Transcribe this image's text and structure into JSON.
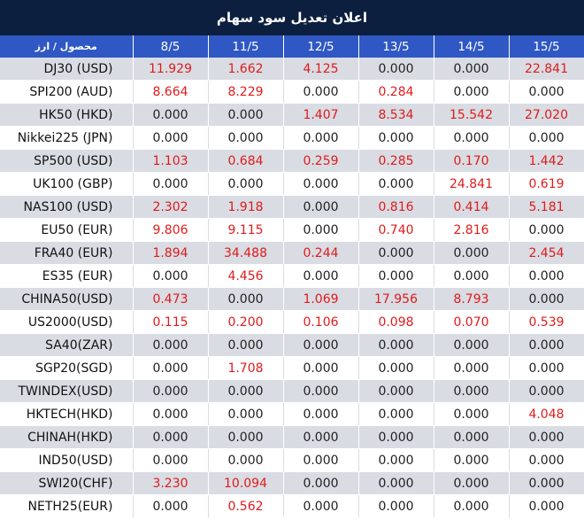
{
  "title": "اعلان تعدیل سود سهام",
  "columns": [
    "محصول / ارز",
    "8/5",
    "11/5",
    "12/5",
    "13/5",
    "14/5",
    "15/5"
  ],
  "rows": [
    {
      "instrument": "DJ30 (USD)",
      "values": [
        "11.929",
        "1.662",
        "4.125",
        "0.000",
        "0.000",
        "22.841"
      ]
    },
    {
      "instrument": "SPI200 (AUD)",
      "values": [
        "8.664",
        "8.229",
        "0.000",
        "0.284",
        "0.000",
        "0.000"
      ]
    },
    {
      "instrument": "HK50 (HKD)",
      "values": [
        "0.000",
        "0.000",
        "1.407",
        "8.534",
        "15.542",
        "27.020"
      ]
    },
    {
      "instrument": "Nikkei225 (JPN)",
      "values": [
        "0.000",
        "0.000",
        "0.000",
        "0.000",
        "0.000",
        "0.000"
      ]
    },
    {
      "instrument": "SP500 (USD)",
      "values": [
        "1.103",
        "0.684",
        "0.259",
        "0.285",
        "0.170",
        "1.442"
      ]
    },
    {
      "instrument": "UK100 (GBP)",
      "values": [
        "0.000",
        "0.000",
        "0.000",
        "0.000",
        "24.841",
        "0.619"
      ]
    },
    {
      "instrument": "NAS100 (USD)",
      "values": [
        "2.302",
        "1.918",
        "0.000",
        "0.816",
        "0.414",
        "5.181"
      ]
    },
    {
      "instrument": "EU50 (EUR)",
      "values": [
        "9.806",
        "9.115",
        "0.000",
        "0.740",
        "2.816",
        "0.000"
      ]
    },
    {
      "instrument": "FRA40 (EUR)",
      "values": [
        "1.894",
        "34.488",
        "0.244",
        "0.000",
        "0.000",
        "2.454"
      ]
    },
    {
      "instrument": "ES35 (EUR)",
      "values": [
        "0.000",
        "4.456",
        "0.000",
        "0.000",
        "0.000",
        "0.000"
      ]
    },
    {
      "instrument": "CHINA50(USD)",
      "values": [
        "0.473",
        "0.000",
        "1.069",
        "17.956",
        "8.793",
        "0.000"
      ]
    },
    {
      "instrument": "US2000(USD)",
      "values": [
        "0.115",
        "0.200",
        "0.106",
        "0.098",
        "0.070",
        "0.539"
      ]
    },
    {
      "instrument": "SA40(ZAR)",
      "values": [
        "0.000",
        "0.000",
        "0.000",
        "0.000",
        "0.000",
        "0.000"
      ]
    },
    {
      "instrument": "SGP20(SGD)",
      "values": [
        "0.000",
        "1.708",
        "0.000",
        "0.000",
        "0.000",
        "0.000"
      ]
    },
    {
      "instrument": "TWINDEX(USD)",
      "values": [
        "0.000",
        "0.000",
        "0.000",
        "0.000",
        "0.000",
        "0.000"
      ]
    },
    {
      "instrument": "HKTECH(HKD)",
      "values": [
        "0.000",
        "0.000",
        "0.000",
        "0.000",
        "0.000",
        "4.048"
      ]
    },
    {
      "instrument": "CHINAH(HKD)",
      "values": [
        "0.000",
        "0.000",
        "0.000",
        "0.000",
        "0.000",
        "0.000"
      ]
    },
    {
      "instrument": "IND50(USD)",
      "values": [
        "0.000",
        "0.000",
        "0.000",
        "0.000",
        "0.000",
        "0.000"
      ]
    },
    {
      "instrument": "SWI20(CHF)",
      "values": [
        "3.230",
        "10.094",
        "0.000",
        "0.000",
        "0.000",
        "0.000"
      ]
    },
    {
      "instrument": "NETH25(EUR)",
      "values": [
        "0.000",
        "0.562",
        "0.000",
        "0.000",
        "0.000",
        "0.000"
      ]
    }
  ],
  "colors": {
    "title_bg": "#0c1f3f",
    "header_bg": "#2f58c4",
    "stripe_bg": "#d9dce3",
    "positive_text": "#e01b1b",
    "zero_text": "#222222"
  }
}
